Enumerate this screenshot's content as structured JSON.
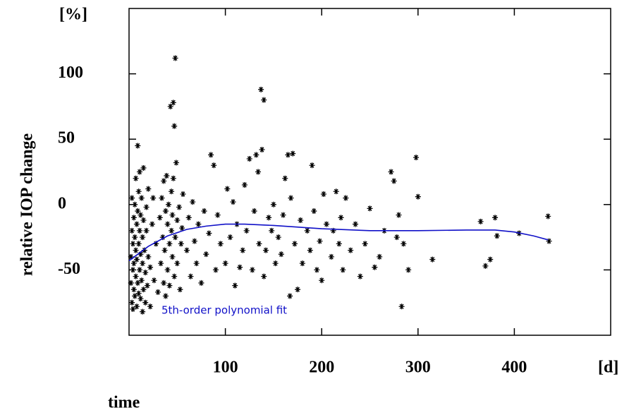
{
  "chart_data": {
    "type": "scatter",
    "y_unit": "[%]",
    "x_unit": "[d]",
    "x_label": "time",
    "y_label": "relative IOP change",
    "xlim": [
      0,
      500
    ],
    "ylim": [
      -100,
      150
    ],
    "xticks": [
      100,
      200,
      300,
      400
    ],
    "yticks": [
      -50,
      0,
      50,
      100
    ],
    "series": [
      {
        "color": "#000000",
        "x": [
          2,
          2,
          3,
          3,
          3,
          4,
          4,
          4,
          5,
          5,
          5,
          6,
          6,
          6,
          7,
          7,
          7,
          8,
          8,
          8,
          9,
          9,
          9,
          10,
          10,
          10,
          11,
          11,
          11,
          12,
          12,
          12,
          13,
          13,
          14,
          14,
          14,
          15,
          15,
          15,
          16,
          17,
          17,
          18,
          18,
          19,
          20,
          20,
          22,
          22,
          24,
          25,
          26,
          28,
          30,
          32,
          33,
          34,
          35,
          36,
          36,
          37,
          38,
          38,
          39,
          40,
          40,
          41,
          42,
          42,
          43,
          44,
          44,
          45,
          45,
          46,
          46,
          47,
          47,
          48,
          48,
          49,
          50,
          50,
          52,
          53,
          54,
          55,
          56,
          60,
          62,
          64,
          66,
          68,
          70,
          72,
          75,
          78,
          80,
          83,
          85,
          88,
          90,
          92,
          95,
          100,
          102,
          105,
          108,
          110,
          112,
          115,
          118,
          120,
          122,
          125,
          128,
          130,
          132,
          134,
          135,
          137,
          138,
          140,
          140,
          142,
          145,
          148,
          150,
          152,
          155,
          158,
          160,
          162,
          165,
          167,
          168,
          170,
          172,
          175,
          178,
          180,
          185,
          188,
          190,
          192,
          195,
          198,
          200,
          202,
          205,
          210,
          212,
          215,
          218,
          220,
          222,
          225,
          230,
          235,
          240,
          245,
          250,
          255,
          260,
          265,
          272,
          275,
          278,
          280,
          283,
          285,
          290,
          298,
          300,
          315,
          365,
          370,
          375,
          380,
          382,
          405,
          435,
          436
        ],
        "values": [
          -60,
          -40,
          -75,
          -20,
          5,
          -50,
          -30,
          -80,
          -10,
          -65,
          -45,
          -25,
          -70,
          0,
          -55,
          -35,
          20,
          -15,
          -78,
          -42,
          -60,
          -5,
          45,
          -30,
          -68,
          10,
          -50,
          -20,
          25,
          -72,
          -38,
          -8,
          -58,
          5,
          -45,
          -25,
          -82,
          -12,
          -65,
          28,
          -35,
          -75,
          -52,
          -2,
          -20,
          -62,
          -40,
          12,
          -48,
          -78,
          -15,
          5,
          -58,
          -30,
          -67,
          -10,
          -45,
          5,
          -25,
          -60,
          18,
          -35,
          -5,
          -70,
          22,
          -15,
          -50,
          0,
          -30,
          -62,
          75,
          -20,
          10,
          -40,
          -8,
          78,
          20,
          60,
          -55,
          -25,
          112,
          32,
          -12,
          -45,
          -2,
          -65,
          -30,
          -18,
          8,
          -35,
          -10,
          -55,
          2,
          -28,
          -45,
          -15,
          -60,
          -5,
          -38,
          -22,
          38,
          30,
          -50,
          -8,
          -30,
          -45,
          12,
          -25,
          2,
          -62,
          -15,
          -48,
          -35,
          15,
          -20,
          35,
          -50,
          -5,
          38,
          25,
          -30,
          88,
          42,
          80,
          -55,
          -35,
          -10,
          -20,
          0,
          -45,
          -25,
          -38,
          -8,
          20,
          38,
          -70,
          5,
          39,
          -30,
          -65,
          -12,
          -45,
          -20,
          -35,
          30,
          -5,
          -50,
          -28,
          -58,
          8,
          -15,
          -40,
          -20,
          10,
          -30,
          -10,
          -50,
          5,
          -35,
          -15,
          -55,
          -30,
          -3,
          -48,
          -40,
          -20,
          25,
          18,
          -25,
          -8,
          -78,
          -30,
          -50,
          36,
          6,
          -42,
          -13,
          -47,
          -42,
          -10,
          -24,
          -22,
          -9,
          -28
        ]
      },
      {
        "name": "5th-order polynomial fit",
        "color": "#1010c8",
        "x": [
          0,
          20,
          40,
          60,
          80,
          100,
          120,
          150,
          200,
          250,
          300,
          350,
          380,
          400,
          420,
          435
        ],
        "values": [
          -43,
          -32,
          -24,
          -19,
          -16.5,
          -15,
          -15,
          -16,
          -18.5,
          -20,
          -20,
          -19.5,
          -19.5,
          -21,
          -24,
          -27
        ]
      }
    ]
  }
}
